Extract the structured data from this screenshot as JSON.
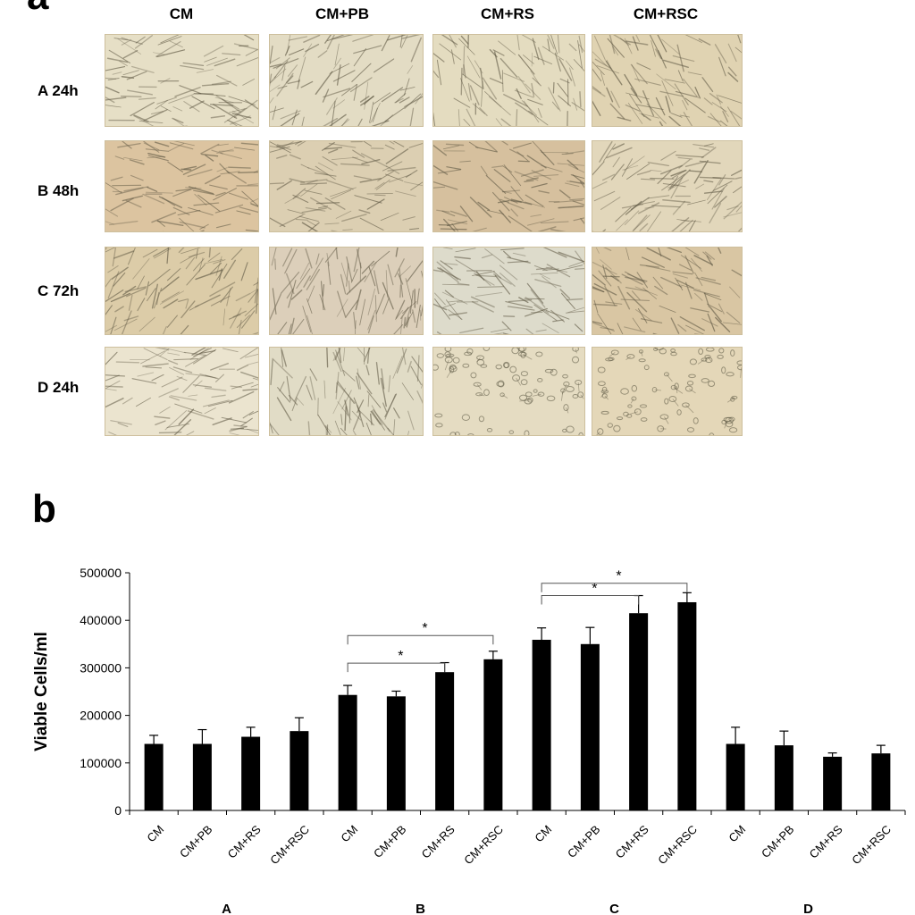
{
  "panel_a": {
    "letter": "a",
    "columns": [
      "CM",
      "CM+PB",
      "CM+RS",
      "CM+RSC"
    ],
    "rows": [
      "A 24h",
      "B 48h",
      "C 72h",
      "D 24h"
    ],
    "tile_tints": [
      [
        "#e6dfc6",
        "#e3dcc4",
        "#e4dcc0",
        "#e0d3b2"
      ],
      [
        "#dcc4a0",
        "#dccfb2",
        "#d6c09e",
        "#e2d7bb"
      ],
      [
        "#dccca8",
        "#dccfba",
        "#dddbcb",
        "#d9c6a3"
      ],
      [
        "#ebe4cf",
        "#e1dcc6",
        "#e5dcc2",
        "#e4d7b8"
      ]
    ],
    "tile_cell_shape": [
      [
        "elongated",
        "elongated",
        "elongated",
        "elongated"
      ],
      [
        "elongated",
        "elongated",
        "elongated",
        "elongated"
      ],
      [
        "elongated",
        "elongated",
        "elongated",
        "elongated"
      ],
      [
        "elongated",
        "elongated",
        "rounded",
        "rounded"
      ]
    ]
  },
  "panel_b": {
    "letter": "b"
  },
  "chart_data": {
    "type": "bar",
    "ylabel": "Viable Cells/ml",
    "xlabel": "",
    "ylim": [
      0,
      500000
    ],
    "yticks": [
      "0",
      "100000",
      "200000",
      "300000",
      "400000",
      "500000"
    ],
    "ytick_values": [
      0,
      100000,
      200000,
      300000,
      400000,
      500000
    ],
    "groups": [
      "A",
      "B",
      "C",
      "D"
    ],
    "categories": [
      "CM",
      "CM+PB",
      "CM+RS",
      "CM+RSC",
      "CM",
      "CM+PB",
      "CM+RS",
      "CM+RSC",
      "CM",
      "CM+PB",
      "CM+RS",
      "CM+RSC",
      "CM",
      "CM+PB",
      "CM+RS",
      "CM+RSC"
    ],
    "values": [
      140000,
      140000,
      155000,
      167000,
      243000,
      240000,
      291000,
      318000,
      359000,
      350000,
      415000,
      438000,
      140000,
      137000,
      113000,
      120000
    ],
    "errors": [
      18000,
      30000,
      20000,
      28000,
      20000,
      11000,
      20000,
      17000,
      25000,
      35000,
      37000,
      20000,
      35000,
      30000,
      8000,
      17000
    ],
    "bar_color": "#000000",
    "grid": false,
    "legend": "none",
    "significance": [
      {
        "from": 4,
        "to": 6,
        "label": "*",
        "level": 310000
      },
      {
        "from": 4,
        "to": 7,
        "label": "*",
        "level": 368000
      },
      {
        "from": 8,
        "to": 10,
        "label": "*",
        "level": 452000
      },
      {
        "from": 8,
        "to": 11,
        "label": "*",
        "level": 478000
      }
    ]
  }
}
